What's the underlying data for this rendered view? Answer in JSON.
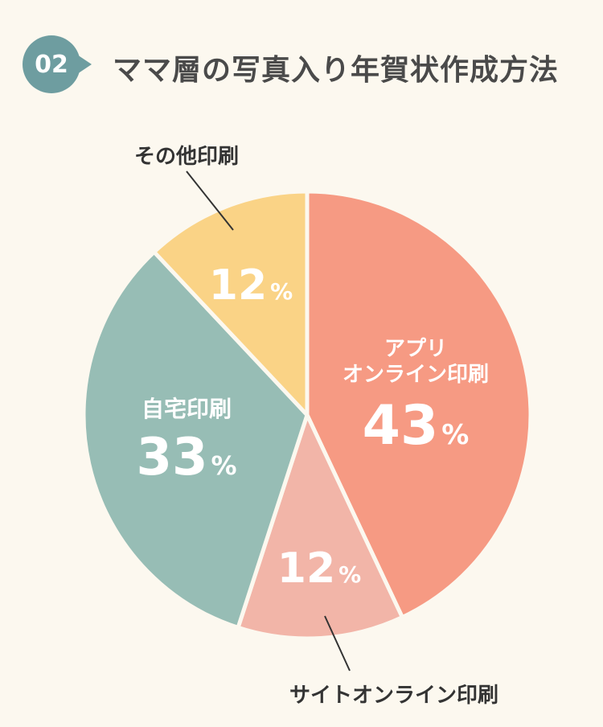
{
  "header": {
    "badge_number": "02",
    "title": "ママ層の写真入り年賀状作成方法"
  },
  "colors": {
    "background": "#FCF8EF",
    "badge": "#6E9DA0",
    "title_text": "#4A4A4A",
    "slice_border": "#FCF8EF",
    "leader_line": "#333333"
  },
  "chart_data": {
    "type": "pie",
    "title": "",
    "start_angle": 0,
    "direction": "clockwise",
    "slices": [
      {
        "label_lines": [
          "アプリ",
          "オンライン印刷"
        ],
        "value": 43,
        "value_label": "43",
        "unit": "%",
        "color": "#F69A83",
        "label_position": "inside"
      },
      {
        "label_lines": [
          "サイトオンライン印刷"
        ],
        "value": 12,
        "value_label": "12",
        "unit": "%",
        "color": "#F2B5A8",
        "label_position": "outside-bottom"
      },
      {
        "label_lines": [
          "自宅印刷"
        ],
        "value": 33,
        "value_label": "33",
        "unit": "%",
        "color": "#97BDB5",
        "label_position": "inside"
      },
      {
        "label_lines": [
          "その他印刷"
        ],
        "value": 12,
        "value_label": "12",
        "unit": "%",
        "color": "#FAD386",
        "label_position": "outside-top-left"
      }
    ]
  }
}
